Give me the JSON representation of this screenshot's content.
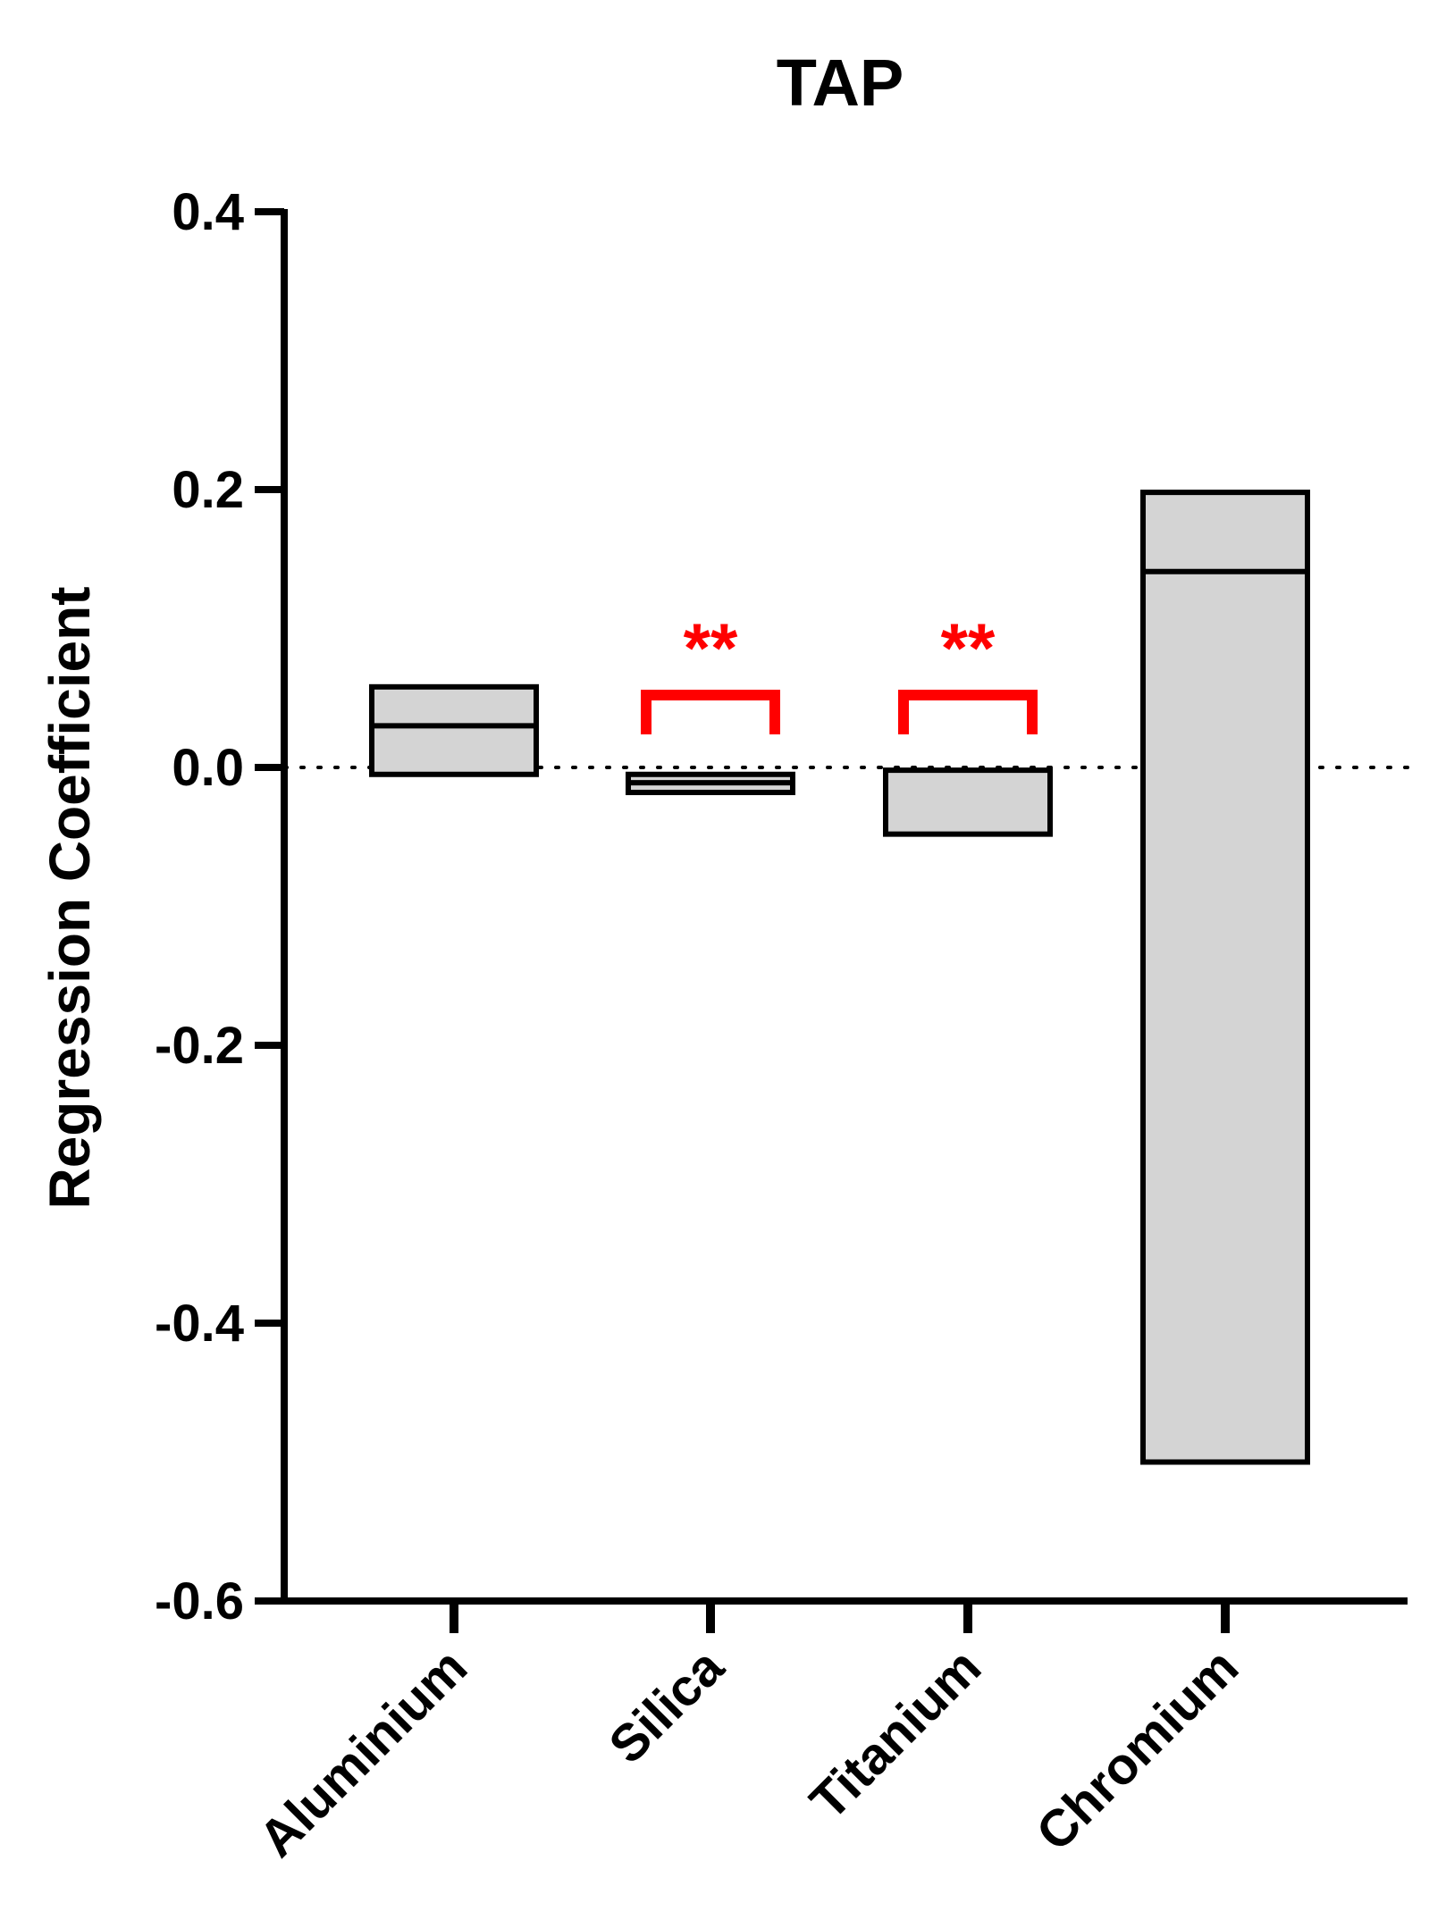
{
  "chart_data": {
    "type": "bar",
    "title": "TAP",
    "xlabel": "",
    "ylabel": "Regression  Coefficient",
    "ylim": [
      -0.6,
      0.4
    ],
    "yticks": [
      0.4,
      0.2,
      0.0,
      -0.2,
      -0.4,
      -0.6
    ],
    "ytick_labels": [
      "0.4",
      "0.2",
      "0.0",
      "-0.2",
      "-0.4",
      "-0.6"
    ],
    "reference_line": 0.0,
    "categories": [
      "Aluminium",
      "Silica",
      "Titanium",
      "Chromium"
    ],
    "floating_bars": [
      {
        "category": "Aluminium",
        "low": -0.005,
        "high": 0.058,
        "mid": 0.03,
        "significance": ""
      },
      {
        "category": "Silica",
        "low": -0.018,
        "high": -0.005,
        "mid": -0.011,
        "significance": "**"
      },
      {
        "category": "Titanium",
        "low": -0.048,
        "high": -0.002,
        "mid": null,
        "significance": "**"
      },
      {
        "category": "Chromium",
        "low": -0.5,
        "high": 0.198,
        "mid": 0.141,
        "significance": ""
      }
    ],
    "grid": false,
    "colors": {
      "bar_fill": "#d4d4d4",
      "bar_edge": "#000000",
      "significance": "#ff0000"
    }
  }
}
